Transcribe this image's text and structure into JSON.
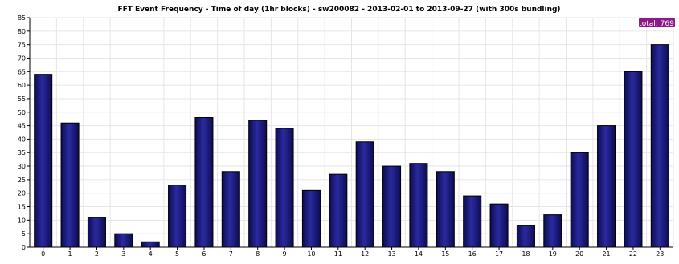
{
  "chart_data": {
    "type": "bar",
    "title": "FFT Event Frequency - Time of day (1hr blocks) - sw200082 - 2013-02-01 to 2013-09-27 (with 300s bundling)",
    "xlabel": "",
    "ylabel": "",
    "categories": [
      "0",
      "1",
      "2",
      "3",
      "4",
      "5",
      "6",
      "7",
      "8",
      "9",
      "10",
      "11",
      "12",
      "13",
      "14",
      "15",
      "16",
      "17",
      "18",
      "19",
      "20",
      "21",
      "22",
      "23"
    ],
    "values": [
      64,
      46,
      11,
      5,
      2,
      23,
      48,
      28,
      47,
      44,
      21,
      27,
      39,
      30,
      31,
      28,
      19,
      16,
      8,
      12,
      35,
      45,
      65,
      75
    ],
    "ylim": [
      0,
      85
    ],
    "yticks": [
      0,
      5,
      10,
      15,
      20,
      25,
      30,
      35,
      40,
      45,
      50,
      55,
      60,
      65,
      70,
      75,
      80,
      85
    ],
    "grid": true,
    "badge": "total: 769",
    "colors": {
      "bar": "#1a1a6e",
      "bar_light": "#3a3ab0",
      "badge_bg": "#8a1a8a",
      "grid": "#e6e6e6"
    }
  }
}
